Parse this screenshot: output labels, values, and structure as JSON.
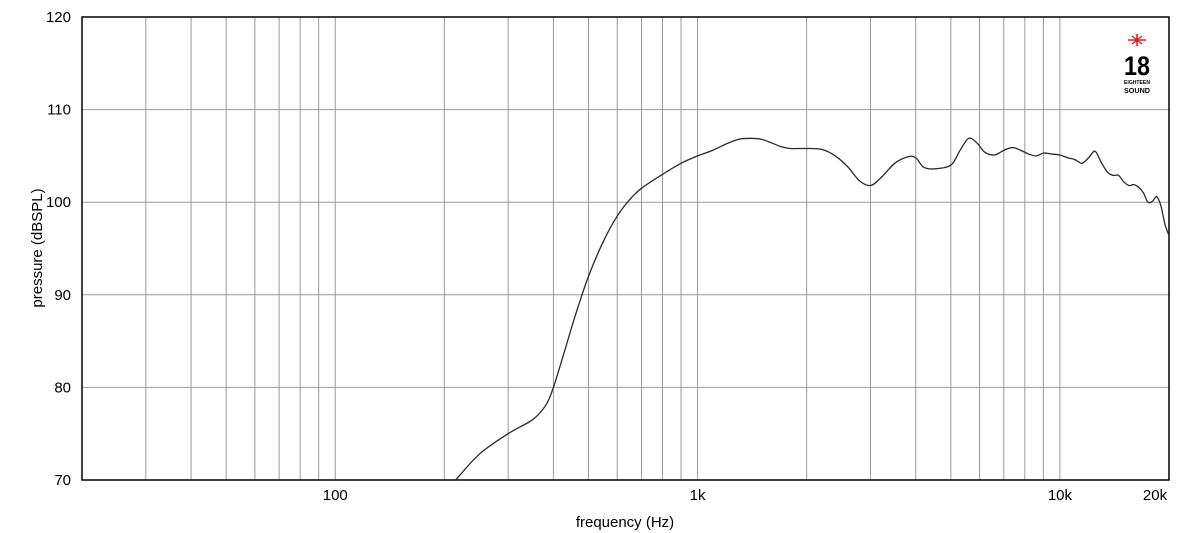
{
  "chart_data": {
    "type": "line",
    "xlabel": "frequency (Hz)",
    "ylabel": "pressure (dBSPL)",
    "xscale": "log",
    "xlim": [
      20,
      20000
    ],
    "ylim": [
      70,
      120
    ],
    "x_ticks": [
      {
        "value": 100,
        "label": "100"
      },
      {
        "value": 1000,
        "label": "1k"
      },
      {
        "value": 10000,
        "label": "10k"
      },
      {
        "value": 20000,
        "label": "20k"
      }
    ],
    "y_ticks": [
      70,
      80,
      90,
      100,
      110,
      120
    ],
    "grid": true,
    "logo": {
      "number": "18",
      "line1": "EIGHTEEN",
      "line2": "SOUND",
      "star_color": "#e0202a"
    },
    "series": [
      {
        "color": "#2a2a2a",
        "x": [
          215,
          250,
          300,
          350,
          380,
          400,
          430,
          460,
          500,
          550,
          600,
          650,
          700,
          800,
          900,
          1000,
          1100,
          1200,
          1300,
          1400,
          1500,
          1600,
          1700,
          1800,
          2000,
          2200,
          2400,
          2600,
          2800,
          3000,
          3200,
          3500,
          3800,
          4000,
          4200,
          4500,
          5000,
          5300,
          5600,
          5900,
          6200,
          6600,
          7000,
          7400,
          7800,
          8200,
          8600,
          9000,
          9500,
          10000,
          10500,
          11000,
          11500,
          12000,
          12500,
          13000,
          13500,
          14000,
          14500,
          15000,
          15500,
          16000,
          16500,
          17000,
          17500,
          18000,
          18500,
          19000,
          19500,
          20000
        ],
        "y": [
          70.0,
          72.8,
          75.0,
          76.5,
          78.0,
          80.0,
          84.0,
          87.8,
          92.0,
          95.8,
          98.5,
          100.3,
          101.5,
          103.0,
          104.2,
          105.0,
          105.6,
          106.3,
          106.8,
          106.9,
          106.8,
          106.4,
          106.0,
          105.8,
          105.8,
          105.7,
          105.0,
          103.8,
          102.3,
          101.8,
          102.6,
          104.2,
          104.9,
          104.8,
          103.8,
          103.6,
          104.0,
          105.6,
          106.9,
          106.4,
          105.4,
          105.1,
          105.6,
          105.9,
          105.6,
          105.2,
          105.0,
          105.3,
          105.2,
          105.1,
          104.8,
          104.6,
          104.2,
          104.8,
          105.5,
          104.3,
          103.3,
          102.9,
          102.9,
          102.2,
          101.8,
          101.9,
          101.6,
          101.0,
          100.0,
          100.1,
          100.6,
          99.6,
          97.6,
          96.4
        ]
      }
    ]
  }
}
